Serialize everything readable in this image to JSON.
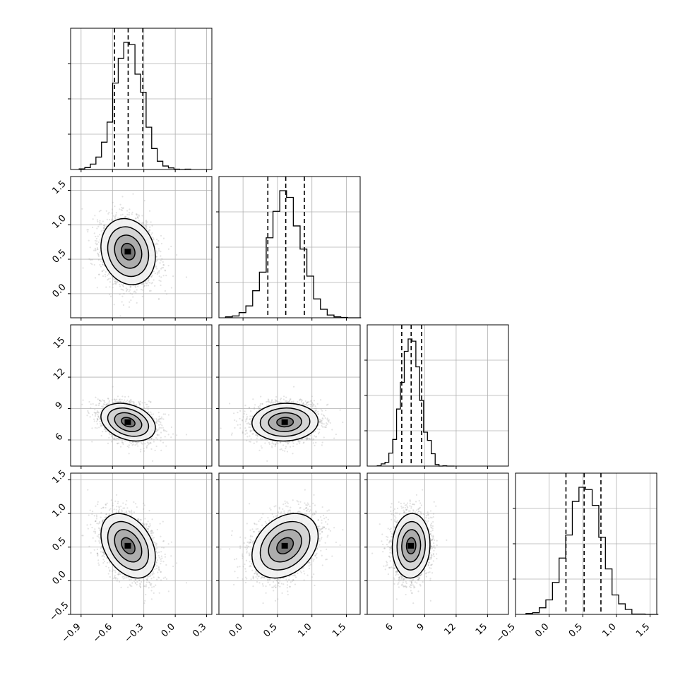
{
  "chart_data": {
    "type": "corner",
    "parameters": [
      {
        "name": "",
        "mean": -0.45,
        "sd": 0.13,
        "range": [
          -1.0,
          0.35
        ],
        "quantiles": [
          -0.58,
          -0.45,
          -0.31
        ],
        "ticks": [
          -0.9,
          -0.6,
          -0.3,
          0.0,
          0.3
        ],
        "tick_labels": [
          "−0.9",
          "−0.6",
          "−0.3",
          "0.0",
          "0.3"
        ]
      },
      {
        "name": "",
        "mean": 0.61,
        "sd": 0.24,
        "range": [
          -0.35,
          1.7
        ],
        "quantiles": [
          0.36,
          0.62,
          0.89
        ],
        "ticks": [
          0.0,
          0.5,
          1.0,
          1.5
        ],
        "tick_labels": [
          "0.0",
          "0.5",
          "1.0",
          "1.5"
        ]
      },
      {
        "name": "",
        "mean": 7.7,
        "sd": 0.9,
        "range": [
          3.5,
          17.0
        ],
        "quantiles": [
          6.8,
          7.7,
          8.7
        ],
        "ticks": [
          6,
          9,
          12,
          15
        ],
        "tick_labels": [
          "6",
          "9",
          "12",
          "15"
        ]
      },
      {
        "name": "",
        "mean": 0.52,
        "sd": 0.24,
        "range": [
          -0.5,
          1.6
        ],
        "quantiles": [
          0.25,
          0.52,
          0.77
        ],
        "ticks": [
          -0.5,
          0.0,
          0.5,
          1.0,
          1.5
        ],
        "tick_labels": [
          "−0.5",
          "0.0",
          "0.5",
          "1.0",
          "1.5"
        ]
      }
    ],
    "y_axis_ticks": {
      "row1": {
        "ticks": [
          0.0,
          0.5,
          1.0,
          1.5
        ],
        "tick_labels": [
          "0.0",
          "0.5",
          "1.0",
          "1.5"
        ]
      },
      "row2": {
        "ticks": [
          6,
          9,
          12,
          15
        ],
        "tick_labels": [
          "6",
          "9",
          "12",
          "15"
        ]
      },
      "row3": {
        "ticks": [
          -0.5,
          0.0,
          0.5,
          1.0,
          1.5
        ],
        "tick_labels": [
          "−0.5",
          "0.0",
          "0.5",
          "1.0",
          "1.5"
        ]
      }
    },
    "correlations": [
      [
        0,
        1,
        -0.15
      ],
      [
        0,
        2,
        -0.3
      ],
      [
        1,
        2,
        0.05
      ],
      [
        0,
        3,
        -0.35
      ],
      [
        1,
        3,
        0.3
      ],
      [
        2,
        3,
        0.05
      ]
    ],
    "histogram_bins": 20,
    "grid": true,
    "quantile_style": "dashed",
    "contour_levels": 4,
    "title": "",
    "xlabel": "",
    "ylabel": ""
  }
}
